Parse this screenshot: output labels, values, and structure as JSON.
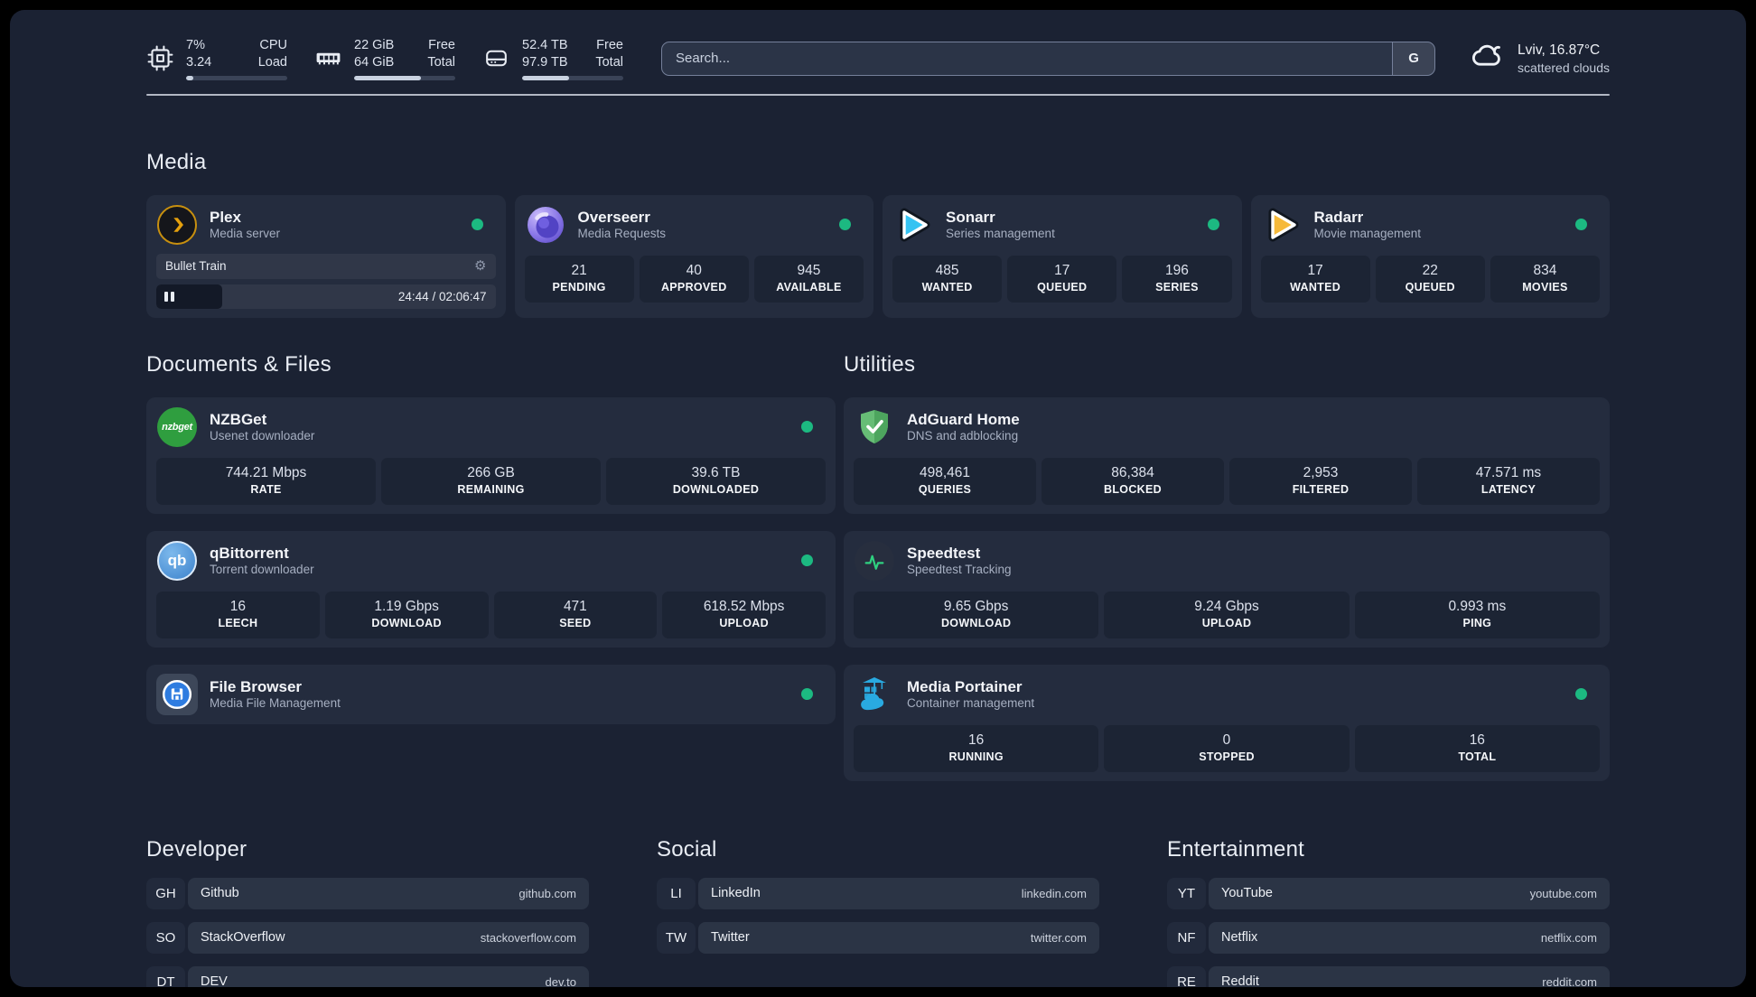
{
  "topbar": {
    "cpu": {
      "usage": "7%",
      "load": "3.24",
      "label_top": "CPU",
      "label_bottom": "Load",
      "progress_pct": 7
    },
    "memory": {
      "free": "22 GiB",
      "total": "64 GiB",
      "label_top": "Free",
      "label_bottom": "Total",
      "progress_pct": 66
    },
    "disk": {
      "free": "52.4 TB",
      "total": "97.9 TB",
      "label_top": "Free",
      "label_bottom": "Total",
      "progress_pct": 46
    },
    "search": {
      "placeholder": "Search...",
      "engine_label": "G"
    },
    "weather": {
      "location_temp": "Lviv, 16.87°C",
      "condition": "scattered clouds"
    }
  },
  "sections": {
    "media": "Media",
    "documents": "Documents & Files",
    "utilities": "Utilities",
    "developer": "Developer",
    "social": "Social",
    "entertainment": "Entertainment"
  },
  "apps": {
    "plex": {
      "name": "Plex",
      "desc": "Media server",
      "status": "online",
      "player_title": "Bullet Train",
      "player_time": "24:44 / 02:06:47",
      "progress_pct": 19.5
    },
    "overseerr": {
      "name": "Overseerr",
      "desc": "Media Requests",
      "status": "online",
      "stats": [
        {
          "value": "21",
          "label": "PENDING"
        },
        {
          "value": "40",
          "label": "APPROVED"
        },
        {
          "value": "945",
          "label": "AVAILABLE"
        }
      ]
    },
    "sonarr": {
      "name": "Sonarr",
      "desc": "Series management",
      "status": "online",
      "stats": [
        {
          "value": "485",
          "label": "WANTED"
        },
        {
          "value": "17",
          "label": "QUEUED"
        },
        {
          "value": "196",
          "label": "SERIES"
        }
      ]
    },
    "radarr": {
      "name": "Radarr",
      "desc": "Movie management",
      "status": "online",
      "stats": [
        {
          "value": "17",
          "label": "WANTED"
        },
        {
          "value": "22",
          "label": "QUEUED"
        },
        {
          "value": "834",
          "label": "MOVIES"
        }
      ]
    },
    "nzbget": {
      "name": "NZBGet",
      "desc": "Usenet downloader",
      "status": "online",
      "icon_text": "nzbget",
      "stats": [
        {
          "value": "744.21 Mbps",
          "label": "RATE"
        },
        {
          "value": "266 GB",
          "label": "REMAINING"
        },
        {
          "value": "39.6 TB",
          "label": "DOWNLOADED"
        }
      ]
    },
    "qbittorrent": {
      "name": "qBittorrent",
      "desc": "Torrent downloader",
      "status": "online",
      "icon_text": "qb",
      "stats": [
        {
          "value": "16",
          "label": "LEECH"
        },
        {
          "value": "1.19 Gbps",
          "label": "DOWNLOAD"
        },
        {
          "value": "471",
          "label": "SEED"
        },
        {
          "value": "618.52 Mbps",
          "label": "UPLOAD"
        }
      ]
    },
    "filebrowser": {
      "name": "File Browser",
      "desc": "Media File Management",
      "status": "online"
    },
    "adguard": {
      "name": "AdGuard Home",
      "desc": "DNS and adblocking",
      "stats": [
        {
          "value": "498,461",
          "label": "QUERIES"
        },
        {
          "value": "86,384",
          "label": "BLOCKED"
        },
        {
          "value": "2,953",
          "label": "FILTERED"
        },
        {
          "value": "47.571 ms",
          "label": "LATENCY"
        }
      ]
    },
    "speedtest": {
      "name": "Speedtest",
      "desc": "Speedtest Tracking",
      "stats": [
        {
          "value": "9.65 Gbps",
          "label": "DOWNLOAD"
        },
        {
          "value": "9.24 Gbps",
          "label": "UPLOAD"
        },
        {
          "value": "0.993 ms",
          "label": "PING"
        }
      ]
    },
    "portainer": {
      "name": "Media Portainer",
      "desc": "Container management",
      "status": "online",
      "stats": [
        {
          "value": "16",
          "label": "RUNNING"
        },
        {
          "value": "0",
          "label": "STOPPED"
        },
        {
          "value": "16",
          "label": "TOTAL"
        }
      ]
    }
  },
  "bookmarks": {
    "developer": [
      {
        "abbr": "GH",
        "name": "Github",
        "domain": "github.com"
      },
      {
        "abbr": "SO",
        "name": "StackOverflow",
        "domain": "stackoverflow.com"
      },
      {
        "abbr": "DT",
        "name": "DEV",
        "domain": "dev.to"
      }
    ],
    "social": [
      {
        "abbr": "LI",
        "name": "LinkedIn",
        "domain": "linkedin.com"
      },
      {
        "abbr": "TW",
        "name": "Twitter",
        "domain": "twitter.com"
      }
    ],
    "entertainment": [
      {
        "abbr": "YT",
        "name": "YouTube",
        "domain": "youtube.com"
      },
      {
        "abbr": "NF",
        "name": "Netflix",
        "domain": "netflix.com"
      },
      {
        "abbr": "RE",
        "name": "Reddit",
        "domain": "reddit.com"
      }
    ]
  },
  "colors": {
    "page_bg": "#1b2233",
    "card_bg": "#242c3e",
    "stat_bg": "#1c2434",
    "status_online": "#1cb981",
    "plex_amber": "#e5a00d",
    "sonarr_cyan": "#36c3f2",
    "radarr_yellow": "#f6b93a",
    "adguard_green": "#5cb86c",
    "speedtest_green": "#2fd180",
    "portainer_blue": "#29aae1",
    "progress_fill": "#c9d2e0"
  }
}
